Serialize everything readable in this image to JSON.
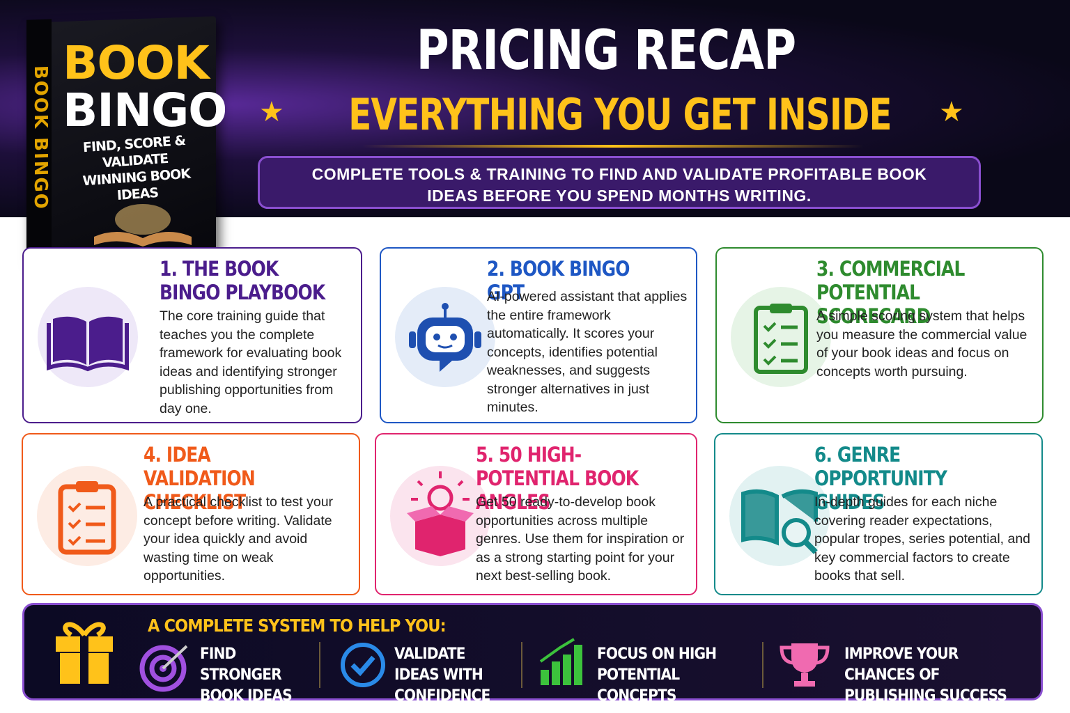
{
  "book": {
    "title_line1": "BOOK",
    "title_line2": "BINGO",
    "subtitle": "FIND, SCORE & VALIDATE WINNING BOOK IDEAS",
    "spine": "BOOK BINGO"
  },
  "header": {
    "title": "PRICING RECAP",
    "subtitle": "EVERYTHING YOU GET INSIDE",
    "tagline": "COMPLETE TOOLS & TRAINING TO FIND AND VALIDATE PROFITABLE BOOK IDEAS BEFORE YOU SPEND MONTHS WRITING."
  },
  "cards": [
    {
      "title": "1. THE BOOK BINGO PLAYBOOK",
      "description": "The core training guide that teaches you the complete framework for evaluating book ideas and identifying stronger publishing opportunities from day one."
    },
    {
      "title": "2. BOOK BINGO GPT",
      "description": "AI-powered assistant that applies the entire framework automatically. It scores your concepts, identifies potential weaknesses, and suggests stronger alternatives in just minutes."
    },
    {
      "title": "3. COMMERCIAL POTENTIAL SCORECARD",
      "description": "A simple scoring system that helps you measure the commercial value of your book ideas and focus on concepts worth pursuing."
    },
    {
      "title": "4. IDEA VALIDATION CHECKLIST",
      "description": "A practical checklist to test your concept before writing. Validate your idea quickly and avoid wasting time on weak opportunities."
    },
    {
      "title": "5. 50 HIGH-POTENTIAL BOOK ANGLES",
      "description": "Get 50 ready-to-develop book opportunities across multiple genres. Use them for inspiration or as a strong starting point for your next best-selling book."
    },
    {
      "title": "6. GENRE OPPORTUNITY GUIDES",
      "description": "In-depth guides for each niche covering reader expectations, popular tropes, series potential, and key commercial factors to create books that sell."
    }
  ],
  "footer": {
    "heading": "A COMPLETE SYSTEM TO HELP YOU:",
    "benefits": [
      "FIND STRONGER BOOK IDEAS",
      "VALIDATE IDEAS WITH CONFIDENCE",
      "FOCUS ON HIGH POTENTIAL CONCEPTS",
      "IMPROVE YOUR CHANCES OF PUBLISHING SUCCESS"
    ]
  }
}
